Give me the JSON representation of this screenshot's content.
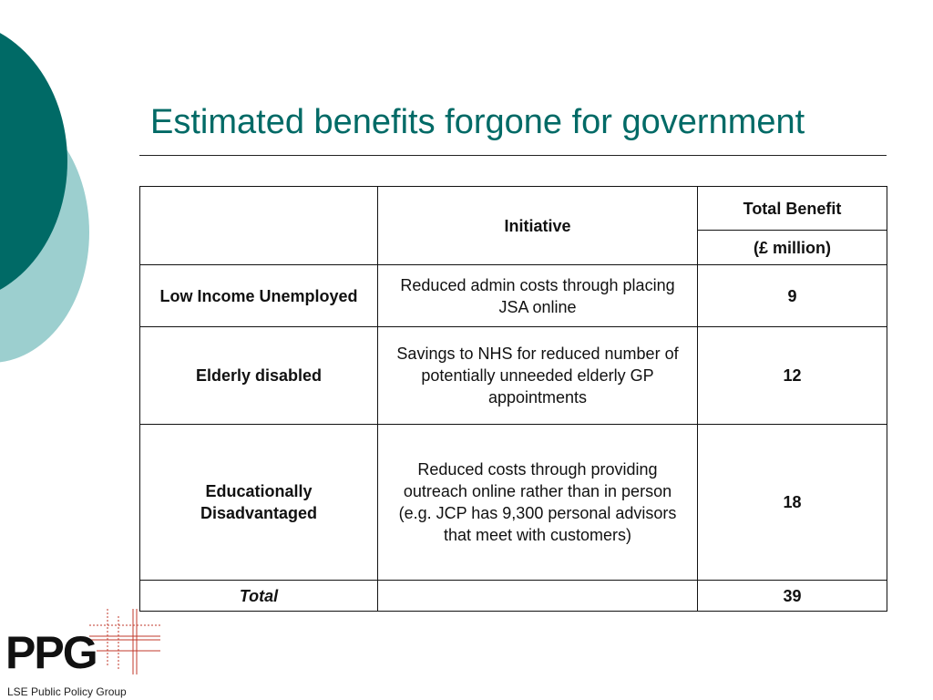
{
  "slide": {
    "title": "Estimated benefits forgone for government"
  },
  "table": {
    "header": {
      "initiative": "Initiative",
      "total_benefit": "Total Benefit",
      "unit": "(£ million)"
    },
    "rows": [
      {
        "group": "Low Income Unemployed",
        "initiative": "Reduced admin costs through placing JSA online",
        "benefit": "9"
      },
      {
        "group": "Elderly disabled",
        "initiative": "Savings to NHS for reduced number of potentially unneeded elderly GP appointments",
        "benefit": "12"
      },
      {
        "group": "Educationally Disadvantaged",
        "initiative": "Reduced costs through providing outreach online rather than in person (e.g. JCP has 9,300 personal advisors that meet with customers)",
        "benefit": "18"
      }
    ],
    "total": {
      "label": "Total",
      "benefit": "39"
    }
  },
  "logo": {
    "mark": "PPG",
    "subtitle": "LSE Public Policy Group"
  },
  "colors": {
    "title": "#006a66",
    "circle_dark": "#006a66",
    "circle_light": "#9ccfcf",
    "logo_grid": "#c0392b"
  }
}
